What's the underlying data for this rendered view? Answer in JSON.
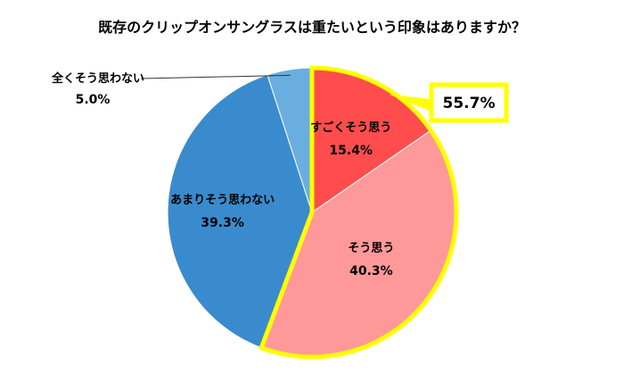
{
  "chart_data": {
    "type": "pie",
    "title": "既存のクリップオンサングラスは重たいという印象はありますか？",
    "slices": [
      {
        "label": "すごくそう思う",
        "value": 15.4,
        "value_text": "15.4%",
        "color": "#ff4d4d"
      },
      {
        "label": "そう思う",
        "value": 40.3,
        "value_text": "40.3%",
        "color": "#ff9999"
      },
      {
        "label": "あまりそう思わない",
        "value": 39.3,
        "value_text": "39.3%",
        "color": "#3a8bcd"
      },
      {
        "label": "全くそう思わない",
        "value": 5.0,
        "value_text": "5.0%",
        "color": "#6aaee0"
      }
    ],
    "highlight": {
      "value": 55.7,
      "value_text": "55.7%",
      "slices": [
        "すごくそう思う",
        "そう思う"
      ],
      "outline_color": "#ffff00"
    },
    "start_angle_deg": 0,
    "direction": "clockwise",
    "legend": "none"
  }
}
